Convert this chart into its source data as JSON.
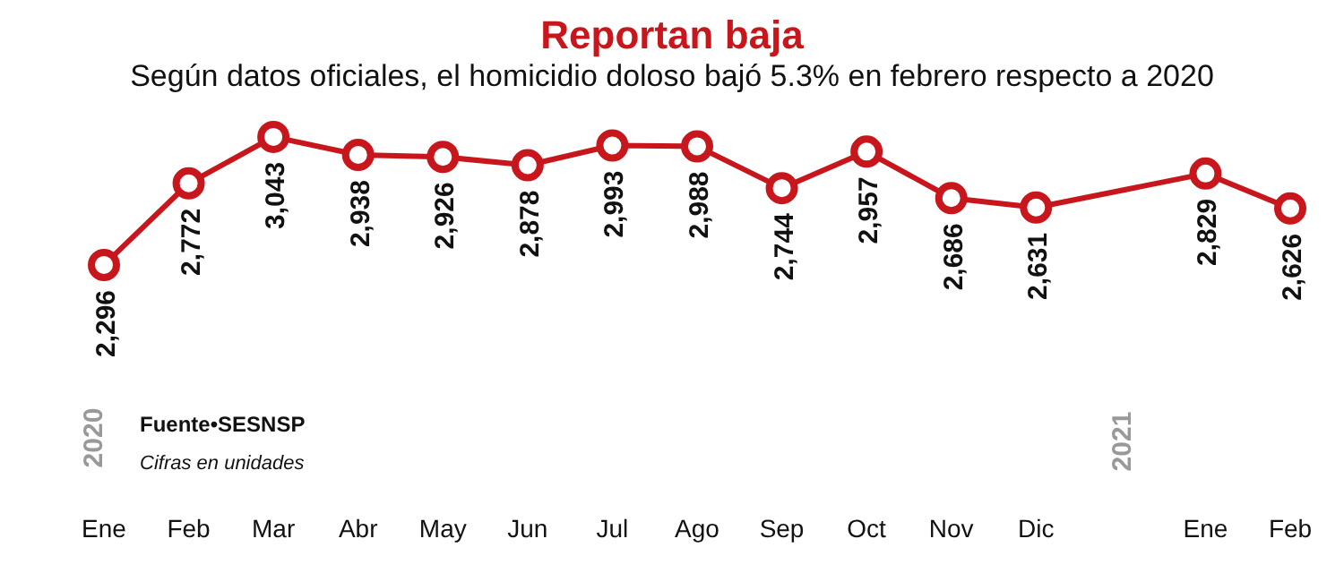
{
  "chart_data": {
    "type": "line",
    "title": "Reportan baja",
    "subtitle": "Según datos oficiales, el homicidio doloso bajó 5.3% en febrero respecto a 2020",
    "categories": [
      "Ene",
      "Feb",
      "Mar",
      "Abr",
      "May",
      "Jun",
      "Jul",
      "Ago",
      "Sep",
      "Oct",
      "Nov",
      "Dic",
      null,
      "Ene",
      "Feb"
    ],
    "values": [
      2296,
      2772,
      3043,
      2938,
      2926,
      2878,
      2993,
      2988,
      2744,
      2957,
      2686,
      2631,
      null,
      2829,
      2626
    ],
    "value_labels": [
      "2,296",
      "2,772",
      "3,043",
      "2,938",
      "2,926",
      "2,878",
      "2,993",
      "2,988",
      "2,744",
      "2,957",
      "2,686",
      "2,631",
      null,
      "2,829",
      "2,626"
    ],
    "color": "#c8161d",
    "marker": "circle",
    "line_style": "solid",
    "annotations": [
      "2020",
      "2021",
      "Fuente•SESNSP",
      "Cifras en unidades"
    ]
  }
}
